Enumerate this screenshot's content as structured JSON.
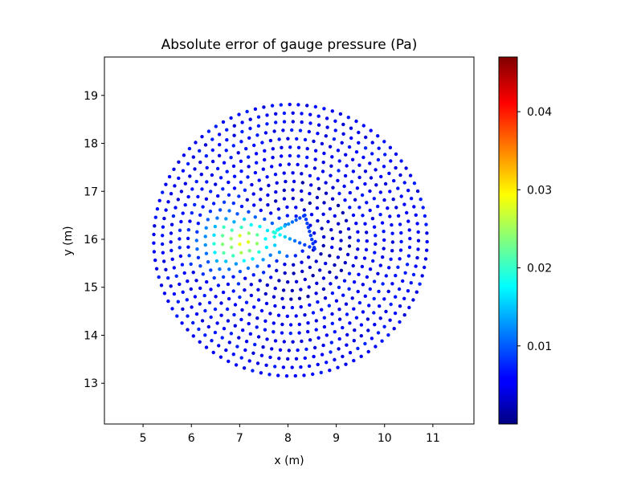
{
  "chart_data": {
    "type": "scatter",
    "title": "Absolute error of gauge pressure (Pa)",
    "xlabel": "x (m)",
    "ylabel": "y (m)",
    "xlim": [
      4.2,
      11.85
    ],
    "ylim": [
      12.15,
      19.8
    ],
    "xticks": [
      5,
      6,
      7,
      8,
      9,
      10,
      11
    ],
    "yticks": [
      13,
      14,
      15,
      16,
      17,
      18,
      19
    ],
    "colormap": "jet",
    "colorbar": {
      "range": [
        0.0,
        0.047
      ],
      "ticks": [
        0.01,
        0.02,
        0.03,
        0.04
      ],
      "tick_labels": [
        "0.01",
        "0.02",
        "0.03",
        "0.04"
      ]
    },
    "grid": false,
    "legend": "none",
    "domain": {
      "center": [
        8.05,
        15.98
      ],
      "radius": 2.83
    },
    "inner_triangle": [
      [
        7.7,
        16.15
      ],
      [
        8.35,
        16.5
      ],
      [
        8.55,
        15.8
      ]
    ],
    "sampling": {
      "rings": 16,
      "ring_spacing": 0.178,
      "point_spacing": 0.18
    },
    "error_hotspot": {
      "center": [
        7.05,
        15.95
      ],
      "peak": 0.026,
      "spread_x": 0.7,
      "spread_y": 0.5
    },
    "colors": {
      "axes": "#000000",
      "background": "#ffffff"
    },
    "points": []
  }
}
